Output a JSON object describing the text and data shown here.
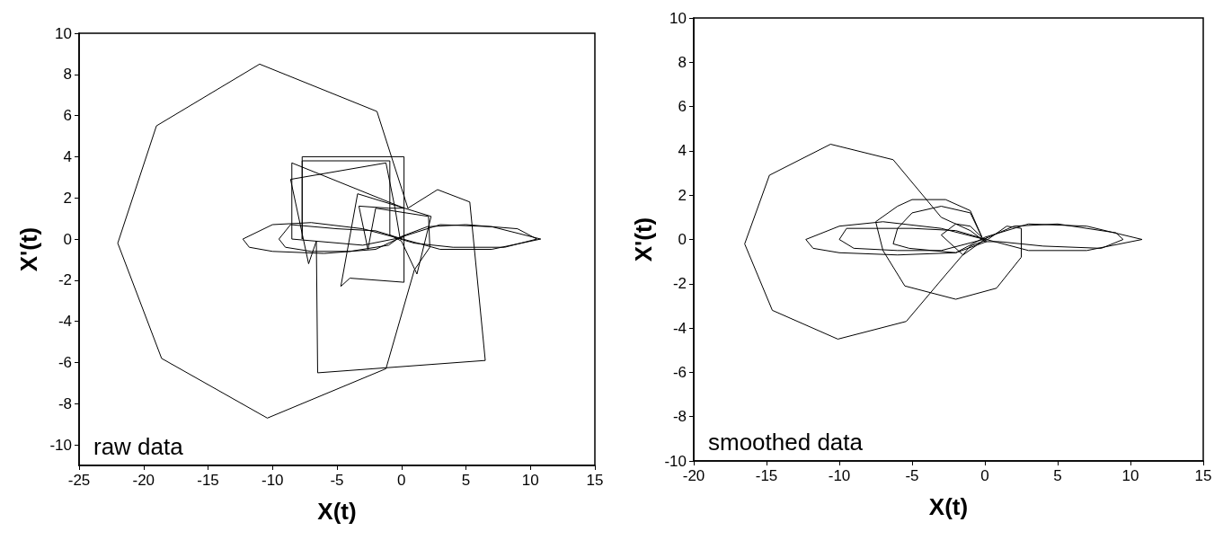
{
  "chart_data": [
    {
      "type": "line",
      "xlabel": "X(t)",
      "ylabel": "X'(t)",
      "annotations": [
        "raw data"
      ],
      "xlim": [
        -25,
        15
      ],
      "xticks": [
        -25,
        -20,
        -15,
        -10,
        -5,
        0,
        5,
        10,
        15
      ],
      "ylim": [
        -11,
        10
      ],
      "yticks": [
        -10,
        -8,
        -6,
        -4,
        -2,
        0,
        2,
        4,
        6,
        8,
        10
      ],
      "grid": false,
      "marker": "none",
      "line_style": "solid",
      "series": [
        {
          "color": "#000000",
          "x": [
            0,
            -3,
            -7,
            -10,
            -12.3,
            -11.8,
            -10,
            -6,
            -2,
            0,
            3,
            7,
            10.8,
            7,
            3,
            0.1,
            -2,
            -5,
            -8.6,
            -9.5,
            -9,
            -7,
            -4,
            -1,
            -0.1,
            2,
            5,
            9,
            10.5,
            8,
            4,
            1,
            -0.1,
            -0.5,
            -1.2,
            -8.6,
            -7.2,
            -6.6,
            -6.5,
            6.5,
            5.3,
            2.8,
            0.5,
            -1.9,
            -11,
            -19,
            -22,
            -18.6,
            -10.4,
            -1.2,
            1,
            2.2,
            2.1,
            -2,
            -2.6,
            -3.3,
            -1,
            0.2,
            0.2,
            -4,
            -4.7,
            -3.4,
            2.3,
            1.2,
            0,
            -0.9,
            -0.9,
            -7.7,
            -7.7,
            -7.7,
            0.2,
            0.2,
            -8.5,
            -8.5,
            -3,
            0.2
          ],
          "values": [
            0,
            0.5,
            0.8,
            0.7,
            0,
            -0.4,
            -0.6,
            -0.7,
            -0.5,
            0.1,
            0.7,
            0.6,
            0,
            -0.5,
            -0.5,
            0,
            0.4,
            0.5,
            0.7,
            0,
            -0.4,
            -0.6,
            -0.6,
            -0.3,
            0.1,
            0.6,
            0.7,
            0.5,
            0,
            -0.4,
            -0.4,
            -0.2,
            0,
            1.5,
            3.7,
            2.9,
            -1.2,
            -0.1,
            -6.5,
            -5.9,
            1.8,
            2.4,
            1.5,
            6.2,
            8.5,
            5.5,
            -0.2,
            -5.8,
            -8.7,
            -6.3,
            -1.5,
            -0.4,
            1.1,
            1.5,
            -0.5,
            1.6,
            1.5,
            1.5,
            -2.1,
            -1.9,
            -2.3,
            2.2,
            1.1,
            -1.7,
            -0.1,
            0.2,
            3.8,
            3.8,
            0,
            4,
            4,
            1.5,
            3.7,
            0,
            -0.3,
            0.1
          ]
        }
      ]
    },
    {
      "type": "line",
      "xlabel": "X(t)",
      "ylabel": "X'(t)",
      "annotations": [
        "smoothed data"
      ],
      "xlim": [
        -20,
        15
      ],
      "xticks": [
        -20,
        -15,
        -10,
        -5,
        0,
        5,
        10,
        15
      ],
      "ylim": [
        -10,
        10
      ],
      "yticks": [
        -10,
        -8,
        -6,
        -4,
        -2,
        0,
        2,
        4,
        6,
        8,
        10
      ],
      "grid": false,
      "marker": "none",
      "line_style": "solid",
      "series": [
        {
          "color": "#000000",
          "x": [
            0,
            -3,
            -7,
            -10,
            -12.3,
            -11.8,
            -10,
            -6,
            -2,
            0,
            3,
            7,
            10.8,
            7,
            3,
            0.1,
            -2,
            -5,
            -9.5,
            -10,
            -9,
            -6,
            -3,
            -0.1,
            2,
            5,
            9,
            9.5,
            8,
            4,
            1,
            0,
            -1,
            -3,
            -6.3,
            -10.6,
            -14.8,
            -16.5,
            -14.6,
            -10.1,
            -5.4,
            -2.7,
            -1,
            0.2,
            1.5,
            2.5,
            2.5,
            0.8,
            -2,
            -5.5,
            -7,
            -7.5,
            -6,
            -5,
            -2.7,
            -1,
            -0.2,
            -1,
            -3,
            -5,
            -6,
            -6.3,
            -5.2,
            -2,
            0.1,
            -1,
            -2,
            -3,
            -1.5,
            0.2
          ],
          "values": [
            0,
            0.5,
            0.8,
            0.6,
            0,
            -0.4,
            -0.6,
            -0.7,
            -0.6,
            0.1,
            0.7,
            0.6,
            0,
            -0.5,
            -0.5,
            0,
            0.4,
            0.5,
            0.5,
            0,
            -0.4,
            -0.5,
            -0.5,
            0,
            0.6,
            0.7,
            0.3,
            0,
            -0.4,
            -0.3,
            -0.1,
            -0.1,
            0.4,
            1,
            3.6,
            4.3,
            2.9,
            -0.2,
            -3.2,
            -4.5,
            -3.7,
            -1.6,
            -0.3,
            0,
            0.6,
            0.5,
            -0.8,
            -2.2,
            -2.7,
            -2.1,
            -0.5,
            0.8,
            1.5,
            1.8,
            1.8,
            1.3,
            0.1,
            1.2,
            1.5,
            1.2,
            0.5,
            -0.2,
            -0.4,
            -0.6,
            -0.1,
            0.6,
            0.7,
            0.2,
            -0.7,
            0.1
          ]
        }
      ]
    }
  ]
}
